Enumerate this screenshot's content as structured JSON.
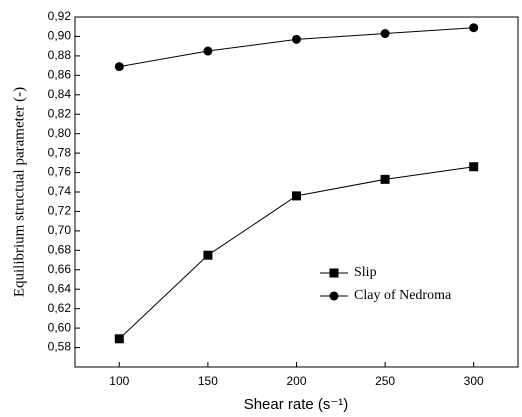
{
  "chart_data": {
    "type": "line",
    "x_label": "Shear rate (s⁻¹)",
    "y_label": "Equilibrium structual parameter (-)",
    "x": [
      100,
      150,
      200,
      250,
      300
    ],
    "series": [
      {
        "name": "Slip",
        "color": "#000000",
        "marker": "square",
        "values": [
          0.589,
          0.675,
          0.736,
          0.753,
          0.766
        ]
      },
      {
        "name": "Clay of Nedroma",
        "color": "#000000",
        "marker": "circle",
        "values": [
          0.869,
          0.885,
          0.897,
          0.903,
          0.909
        ]
      }
    ],
    "xlim": [
      75,
      325
    ],
    "xticks": [
      100,
      150,
      200,
      250,
      300
    ],
    "ylim": [
      0.56,
      0.92
    ],
    "yticks": [
      {
        "value": 0.58,
        "label": "0,58"
      },
      {
        "value": 0.6,
        "label": "0,60"
      },
      {
        "value": 0.62,
        "label": "0,62"
      },
      {
        "value": 0.64,
        "label": "0,64"
      },
      {
        "value": 0.66,
        "label": "0,66"
      },
      {
        "value": 0.68,
        "label": "0,68"
      },
      {
        "value": 0.7,
        "label": "0,70"
      },
      {
        "value": 0.72,
        "label": "0,72"
      },
      {
        "value": 0.74,
        "label": "0,74"
      },
      {
        "value": 0.76,
        "label": "0,76"
      },
      {
        "value": 0.78,
        "label": "0,78"
      },
      {
        "value": 0.8,
        "label": "0,80"
      },
      {
        "value": 0.82,
        "label": "0,82"
      },
      {
        "value": 0.84,
        "label": "0,84"
      },
      {
        "value": 0.86,
        "label": "0,86"
      },
      {
        "value": 0.88,
        "label": "0,88"
      },
      {
        "value": 0.9,
        "label": "0,90"
      },
      {
        "value": 0.92,
        "label": "0,92"
      }
    ],
    "grid": false,
    "legend": "lower-right"
  }
}
